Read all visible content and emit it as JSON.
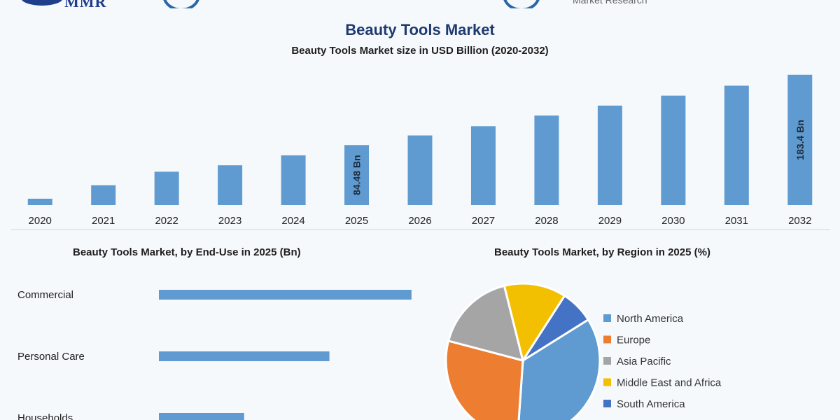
{
  "header": {
    "logo_text": "MMR",
    "tagline": "Market Research",
    "main_title": "Beauty Tools Market"
  },
  "chart_data": [
    {
      "type": "bar",
      "title": "Beauty Tools Market size in USD Billion (2020-2032)",
      "categories": [
        "2020",
        "2021",
        "2022",
        "2023",
        "2024",
        "2025",
        "2026",
        "2027",
        "2028",
        "2029",
        "2030",
        "2031",
        "2032"
      ],
      "values": [
        9,
        28,
        47,
        56,
        70,
        84.48,
        98,
        111,
        126,
        140,
        154,
        168,
        183.4
      ],
      "ylim": [
        0,
        195
      ],
      "data_labels": [
        {
          "category": "2025",
          "text": "84.48 Bn"
        },
        {
          "category": "2032",
          "text": "183.4 Bn"
        }
      ],
      "color": "#5f9bd1",
      "grid": false
    },
    {
      "type": "bar",
      "orientation": "horizontal",
      "title": "Beauty Tools Market, by End-Use in 2025 (Bn)",
      "categories": [
        "Commercial",
        "Personal Care",
        "Households"
      ],
      "values": [
        40,
        27,
        13.5
      ],
      "xlim": [
        0,
        45
      ],
      "color": "#5f9bd1"
    },
    {
      "type": "pie",
      "title": "Beauty Tools Market, by Region in 2025 (%)",
      "labels": [
        "North America",
        "Europe",
        "Asia Pacific",
        "Middle East and Africa",
        "South America"
      ],
      "values": [
        35,
        28,
        17,
        13,
        7
      ],
      "colors": [
        "#5f9bd1",
        "#ed7d31",
        "#a5a5a5",
        "#f2c000",
        "#4472c4"
      ],
      "legend": "right"
    }
  ]
}
